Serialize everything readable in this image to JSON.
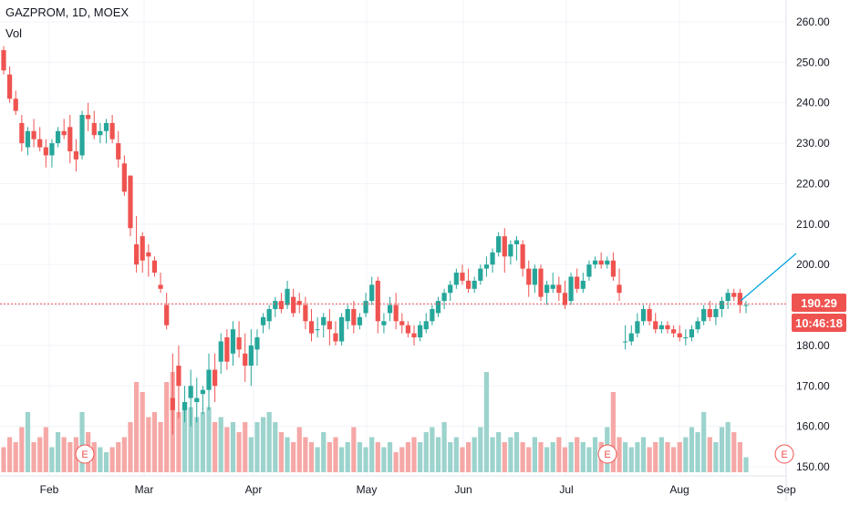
{
  "header": {
    "symbol": "GAZPROM",
    "interval": "1D",
    "exchange": "MOEX",
    "title": "GAZPROM, 1D, MOEX",
    "volume_label": "Vol"
  },
  "price_axis": {
    "ticks": [
      "260.00",
      "250.00",
      "240.00",
      "230.00",
      "220.00",
      "210.00",
      "200.00",
      "190.00",
      "180.00",
      "170.00",
      "160.00",
      "150.00"
    ]
  },
  "time_axis": {
    "labels": [
      "Feb",
      "Mar",
      "Apr",
      "May",
      "Jun",
      "Jul",
      "Aug",
      "Sep"
    ]
  },
  "last_price": {
    "value": 190.29,
    "label": "190.29",
    "countdown": "10:46:18"
  },
  "events": [
    "E",
    "E",
    "E"
  ],
  "colors": {
    "up": "#26a69a",
    "down": "#ef5350",
    "up_vol": "#9cd3cd",
    "down_vol": "#f5a8a6",
    "trendline": "#00a3e0",
    "grid": "#f0f3fa"
  },
  "chart_data": {
    "type": "candlestick",
    "title": "GAZPROM, 1D, MOEX",
    "ylim": [
      148,
      264
    ],
    "x_month_labels": [
      "Feb",
      "Mar",
      "Apr",
      "May",
      "Jun",
      "Jul",
      "Aug",
      "Sep"
    ],
    "last_price": 190.29,
    "grid": true,
    "ohlc": [
      [
        253,
        254,
        247,
        248
      ],
      [
        247,
        249,
        240,
        241
      ],
      [
        241,
        243,
        237,
        238
      ],
      [
        235,
        237,
        228,
        230
      ],
      [
        229,
        234,
        227,
        233
      ],
      [
        233,
        236,
        229,
        231
      ],
      [
        231,
        234,
        228,
        229
      ],
      [
        229,
        231,
        224,
        227
      ],
      [
        227,
        231,
        224,
        230
      ],
      [
        230,
        234,
        229,
        233
      ],
      [
        233,
        236,
        231,
        232
      ],
      [
        234,
        237,
        225,
        228
      ],
      [
        228,
        231,
        223,
        226
      ],
      [
        227,
        238,
        226,
        237
      ],
      [
        237,
        240,
        233,
        236
      ],
      [
        235,
        238,
        231,
        232
      ],
      [
        232,
        235,
        230,
        233
      ],
      [
        233,
        236,
        230,
        235
      ],
      [
        235,
        237,
        230,
        231
      ],
      [
        230,
        233,
        224,
        226
      ],
      [
        225,
        227,
        217,
        218
      ],
      [
        222,
        222,
        207,
        209
      ],
      [
        205,
        212,
        198,
        200
      ],
      [
        207,
        208,
        198,
        201
      ],
      [
        203,
        205,
        197,
        202
      ],
      [
        201,
        202,
        197,
        198
      ],
      [
        195,
        198,
        193,
        194
      ],
      [
        190,
        193,
        184,
        185
      ],
      [
        167,
        178,
        158,
        164
      ],
      [
        175,
        180,
        162,
        170
      ],
      [
        164,
        170,
        161,
        166
      ],
      [
        167,
        174,
        160,
        170
      ],
      [
        166,
        172,
        161,
        167
      ],
      [
        168,
        170,
        163,
        169
      ],
      [
        169,
        178,
        164,
        174
      ],
      [
        174,
        178,
        166,
        170
      ],
      [
        176,
        183,
        173,
        181
      ],
      [
        182,
        184,
        174,
        176
      ],
      [
        178,
        186,
        175,
        184
      ],
      [
        182,
        186,
        177,
        179
      ],
      [
        178,
        183,
        171,
        175
      ],
      [
        175,
        184,
        170,
        180
      ],
      [
        179,
        184,
        175,
        182
      ],
      [
        185,
        188,
        183,
        187
      ],
      [
        186,
        190,
        184,
        189
      ],
      [
        189,
        192,
        187,
        191
      ],
      [
        191,
        193,
        188,
        189
      ],
      [
        190,
        196,
        189,
        194
      ],
      [
        192,
        194,
        187,
        188
      ],
      [
        191,
        193,
        188,
        190
      ],
      [
        190,
        192,
        184,
        186
      ],
      [
        186,
        189,
        181,
        183
      ],
      [
        184,
        187,
        182,
        184
      ],
      [
        185,
        188,
        182,
        187
      ],
      [
        186,
        189,
        180,
        184
      ],
      [
        183,
        186,
        180,
        181
      ],
      [
        181,
        188,
        180,
        187
      ],
      [
        186,
        190,
        184,
        189
      ],
      [
        189,
        191,
        183,
        185
      ],
      [
        185,
        188,
        184,
        187
      ],
      [
        188,
        193,
        187,
        191
      ],
      [
        191,
        197,
        190,
        195
      ],
      [
        196,
        197,
        183,
        186
      ],
      [
        185,
        188,
        183,
        186
      ],
      [
        188,
        192,
        186,
        190
      ],
      [
        190,
        193,
        184,
        186
      ],
      [
        186,
        188,
        183,
        185
      ],
      [
        185,
        186,
        182,
        183
      ],
      [
        183,
        185,
        180,
        182
      ],
      [
        182,
        186,
        181,
        185
      ],
      [
        184,
        188,
        183,
        186
      ],
      [
        186,
        190,
        185,
        189
      ],
      [
        188,
        192,
        187,
        191
      ],
      [
        191,
        194,
        189,
        193
      ],
      [
        193,
        196,
        191,
        195
      ],
      [
        195,
        199,
        194,
        198
      ],
      [
        198,
        200,
        195,
        196
      ],
      [
        196,
        199,
        193,
        194
      ],
      [
        194,
        197,
        193,
        196
      ],
      [
        196,
        200,
        195,
        199
      ],
      [
        199,
        202,
        197,
        200
      ],
      [
        200,
        204,
        198,
        203
      ],
      [
        203,
        208,
        202,
        207
      ],
      [
        207,
        209,
        198,
        202
      ],
      [
        202,
        206,
        200,
        205
      ],
      [
        205,
        207,
        201,
        206
      ],
      [
        205,
        206,
        197,
        199
      ],
      [
        199,
        201,
        192,
        195
      ],
      [
        195,
        200,
        193,
        199
      ],
      [
        199,
        200,
        191,
        192
      ],
      [
        193,
        196,
        190,
        195
      ],
      [
        194,
        198,
        193,
        195
      ],
      [
        195,
        197,
        191,
        193
      ],
      [
        193,
        196,
        189,
        190
      ],
      [
        191,
        198,
        190,
        197
      ],
      [
        197,
        199,
        193,
        194
      ],
      [
        194,
        198,
        193,
        196
      ],
      [
        197,
        201,
        196,
        200
      ],
      [
        200,
        202,
        199,
        201
      ],
      [
        201,
        203,
        199,
        200
      ],
      [
        200,
        202,
        199,
        201
      ],
      [
        201,
        203,
        196,
        197
      ],
      [
        195,
        199,
        191,
        193
      ],
      [
        181,
        185,
        179,
        181
      ],
      [
        181,
        185,
        180,
        183
      ],
      [
        183,
        188,
        182,
        186
      ],
      [
        186,
        190,
        185,
        189
      ],
      [
        189,
        190,
        185,
        186
      ],
      [
        186,
        188,
        183,
        184
      ],
      [
        184,
        186,
        183,
        185
      ],
      [
        185,
        186,
        183,
        184
      ],
      [
        184,
        185,
        182,
        183
      ],
      [
        183,
        185,
        181,
        182
      ],
      [
        182,
        184,
        180,
        182
      ],
      [
        182,
        185,
        181,
        184
      ],
      [
        184,
        187,
        183,
        186
      ],
      [
        186,
        190,
        185,
        189
      ],
      [
        189,
        191,
        186,
        187
      ],
      [
        187,
        190,
        185,
        189
      ],
      [
        189,
        192,
        187,
        191
      ],
      [
        191,
        194,
        189,
        193
      ],
      [
        193,
        194,
        191,
        192
      ],
      [
        193,
        194,
        188,
        190
      ],
      [
        190,
        191,
        188,
        190
      ]
    ],
    "volume_relative": [
      0.25,
      0.35,
      0.3,
      0.45,
      0.6,
      0.3,
      0.35,
      0.45,
      0.25,
      0.4,
      0.35,
      0.3,
      0.35,
      0.6,
      0.4,
      0.3,
      0.25,
      0.2,
      0.25,
      0.3,
      0.35,
      0.5,
      0.9,
      0.8,
      0.55,
      0.6,
      0.5,
      0.9,
      1.0,
      0.6,
      0.7,
      0.65,
      0.55,
      0.6,
      0.65,
      0.5,
      0.55,
      0.45,
      0.5,
      0.4,
      0.5,
      0.35,
      0.5,
      0.55,
      0.6,
      0.5,
      0.4,
      0.35,
      0.3,
      0.45,
      0.35,
      0.3,
      0.25,
      0.4,
      0.3,
      0.35,
      0.25,
      0.3,
      0.45,
      0.3,
      0.25,
      0.35,
      0.3,
      0.25,
      0.3,
      0.2,
      0.25,
      0.3,
      0.35,
      0.3,
      0.4,
      0.45,
      0.35,
      0.5,
      0.3,
      0.35,
      0.25,
      0.3,
      0.35,
      0.45,
      1.0,
      0.35,
      0.4,
      0.3,
      0.35,
      0.4,
      0.3,
      0.25,
      0.35,
      0.3,
      0.25,
      0.3,
      0.35,
      0.25,
      0.3,
      0.35,
      0.3,
      0.25,
      0.35,
      0.3,
      0.45,
      0.8,
      0.35,
      0.3,
      0.25,
      0.3,
      0.35,
      0.25,
      0.3,
      0.35,
      0.3,
      0.25,
      0.3,
      0.35,
      0.45,
      0.4,
      0.6,
      0.35,
      0.3,
      0.45,
      0.5,
      0.4,
      0.3,
      0.15
    ]
  }
}
